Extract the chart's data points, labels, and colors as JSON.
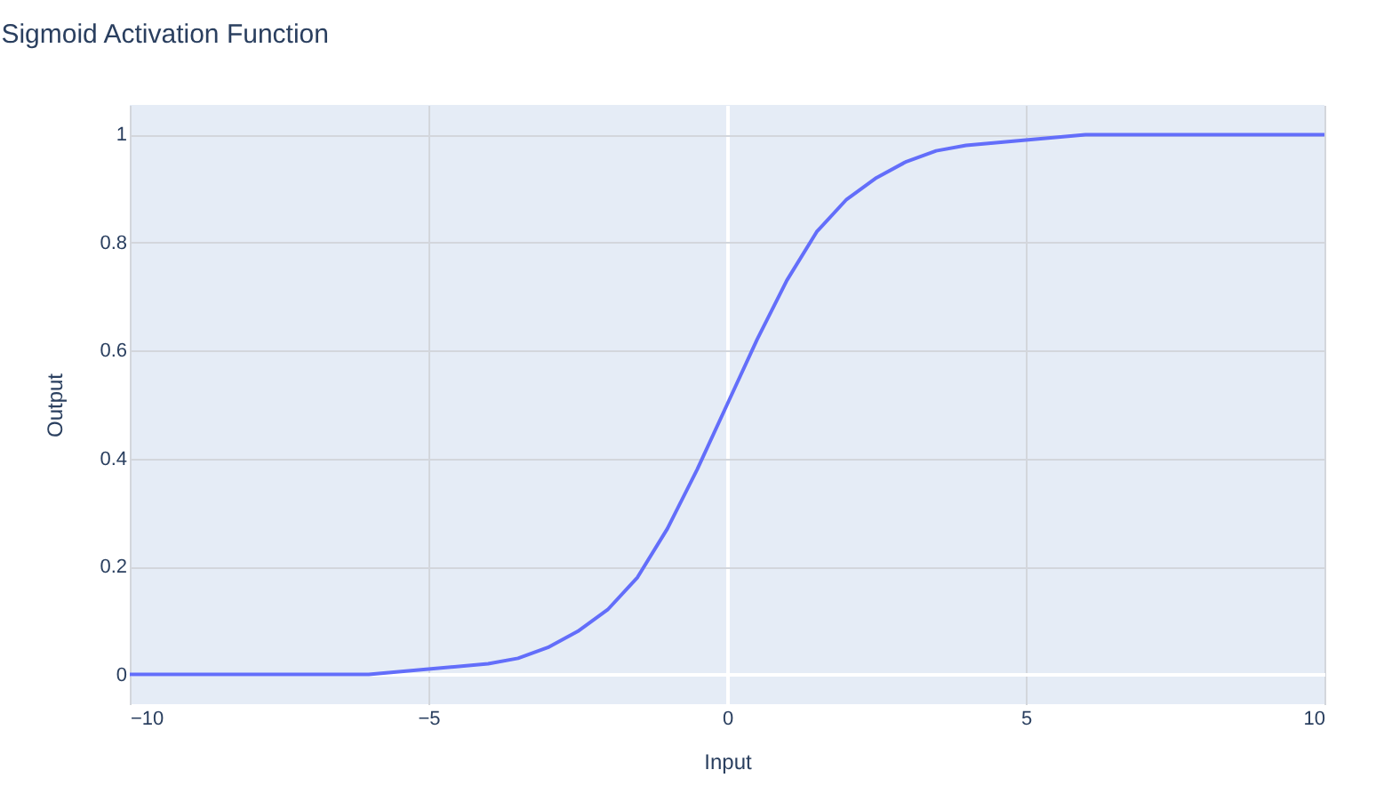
{
  "chart_data": {
    "type": "line",
    "title": "Sigmoid Activation Function",
    "xlabel": "Input",
    "ylabel": "Output",
    "x": [
      -10,
      -6,
      -5,
      -4,
      -3.5,
      -3,
      -2.5,
      -2,
      -1.5,
      -1,
      -0.5,
      0,
      0.5,
      1,
      1.5,
      2,
      2.5,
      3,
      3.5,
      4,
      5,
      6,
      10
    ],
    "series": [
      {
        "color": "#636efa",
        "values": [
          0.0,
          0.0,
          0.01,
          0.02,
          0.03,
          0.05,
          0.08,
          0.12,
          0.18,
          0.27,
          0.38,
          0.5,
          0.62,
          0.73,
          0.82,
          0.88,
          0.92,
          0.95,
          0.97,
          0.98,
          0.99,
          1.0,
          1.0
        ]
      }
    ],
    "xlim": [
      -10,
      10
    ],
    "xticks": [
      {
        "value": -10,
        "label": "−10"
      },
      {
        "value": -5,
        "label": "−5"
      },
      0,
      5,
      10
    ],
    "ylim": [
      -0.055,
      1.055
    ],
    "yticks": [
      0,
      0.2,
      0.4,
      0.6,
      0.8,
      1
    ],
    "grid": true,
    "marker": "none",
    "line_style": "solid"
  }
}
